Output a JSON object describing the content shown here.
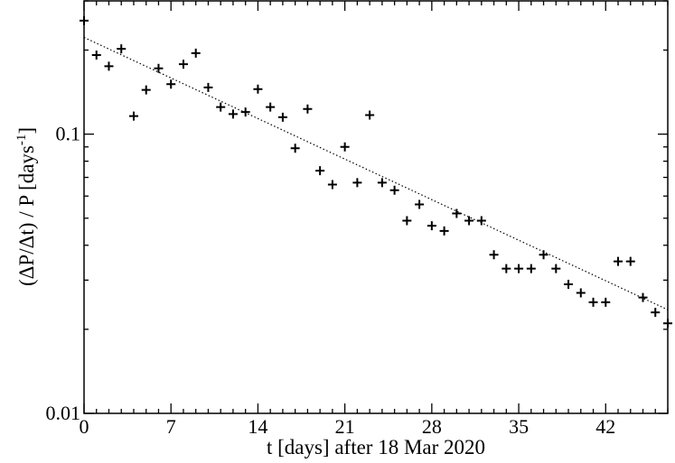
{
  "chart_data": {
    "type": "scatter",
    "xlabel": "t [days] after 18 Mar 2020",
    "ylabel_main": "(ΔP/Δt) / P [days",
    "ylabel_sup": "-1",
    "ylabel_close": "]",
    "y_scale": "log",
    "xlim": [
      0,
      47
    ],
    "ylim": [
      0.01,
      0.3
    ],
    "x_ticks": [
      {
        "value": 0,
        "label": "0"
      },
      {
        "value": 7,
        "label": "7"
      },
      {
        "value": 14,
        "label": "14"
      },
      {
        "value": 21,
        "label": "21"
      },
      {
        "value": 28,
        "label": "28"
      },
      {
        "value": 35,
        "label": "35"
      },
      {
        "value": 42,
        "label": "42"
      }
    ],
    "y_ticks": [
      {
        "value": 0.01,
        "label": "0.01"
      },
      {
        "value": 0.1,
        "label": "0.1"
      }
    ],
    "grid": false,
    "marker": "plus",
    "points": [
      [
        0,
        0.255
      ],
      [
        1,
        0.192
      ],
      [
        2,
        0.175
      ],
      [
        3,
        0.202
      ],
      [
        4,
        0.116
      ],
      [
        5,
        0.144
      ],
      [
        6,
        0.172
      ],
      [
        7,
        0.151
      ],
      [
        8,
        0.178
      ],
      [
        9,
        0.195
      ],
      [
        10,
        0.147
      ],
      [
        11,
        0.125
      ],
      [
        12,
        0.118
      ],
      [
        13,
        0.12
      ],
      [
        14,
        0.145
      ],
      [
        15,
        0.125
      ],
      [
        16,
        0.115
      ],
      [
        17,
        0.089
      ],
      [
        18,
        0.123
      ],
      [
        19,
        0.074
      ],
      [
        20,
        0.066
      ],
      [
        21,
        0.09
      ],
      [
        22,
        0.067
      ],
      [
        23,
        0.117
      ],
      [
        24,
        0.067
      ],
      [
        25,
        0.063
      ],
      [
        26,
        0.049
      ],
      [
        27,
        0.056
      ],
      [
        28,
        0.047
      ],
      [
        29,
        0.045
      ],
      [
        30,
        0.052
      ],
      [
        31,
        0.049
      ],
      [
        32,
        0.049
      ],
      [
        33,
        0.037
      ],
      [
        34,
        0.033
      ],
      [
        35,
        0.033
      ],
      [
        36,
        0.033
      ],
      [
        37,
        0.037
      ],
      [
        38,
        0.033
      ],
      [
        39,
        0.029
      ],
      [
        40,
        0.027
      ],
      [
        41,
        0.025
      ],
      [
        42,
        0.025
      ],
      [
        43,
        0.035
      ],
      [
        44,
        0.035
      ],
      [
        45,
        0.026
      ],
      [
        46,
        0.023
      ],
      [
        47,
        0.021
      ]
    ],
    "fit_line": {
      "style": "dotted",
      "x": [
        0,
        47
      ],
      "y": [
        0.222,
        0.0235
      ]
    },
    "colors": {
      "marker": "#000000",
      "line": "#000000",
      "axes": "#000000"
    }
  }
}
